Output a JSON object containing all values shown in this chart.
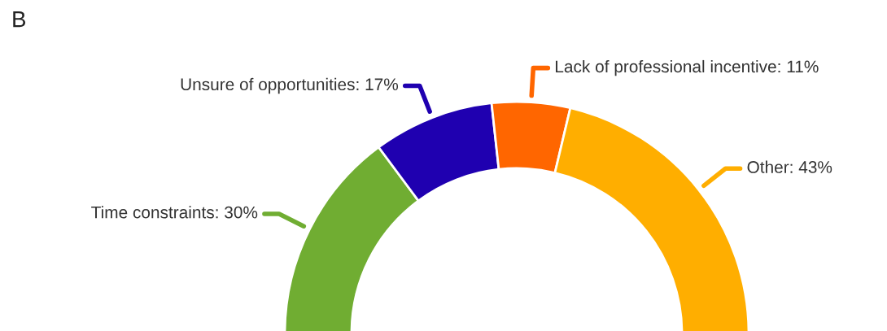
{
  "chart_data": {
    "type": "donut",
    "title": "B",
    "categories": [
      "Time constraints",
      "Unsure of opportunities",
      "Lack of professional incentive",
      "Other"
    ],
    "values": [
      30,
      17,
      11,
      43
    ],
    "colors": [
      "#70ad32",
      "#1f00b0",
      "#ff6600",
      "#ffae00"
    ],
    "value_labels": [
      "30%",
      "17%",
      "11%",
      "43%"
    ],
    "legend": false
  }
}
